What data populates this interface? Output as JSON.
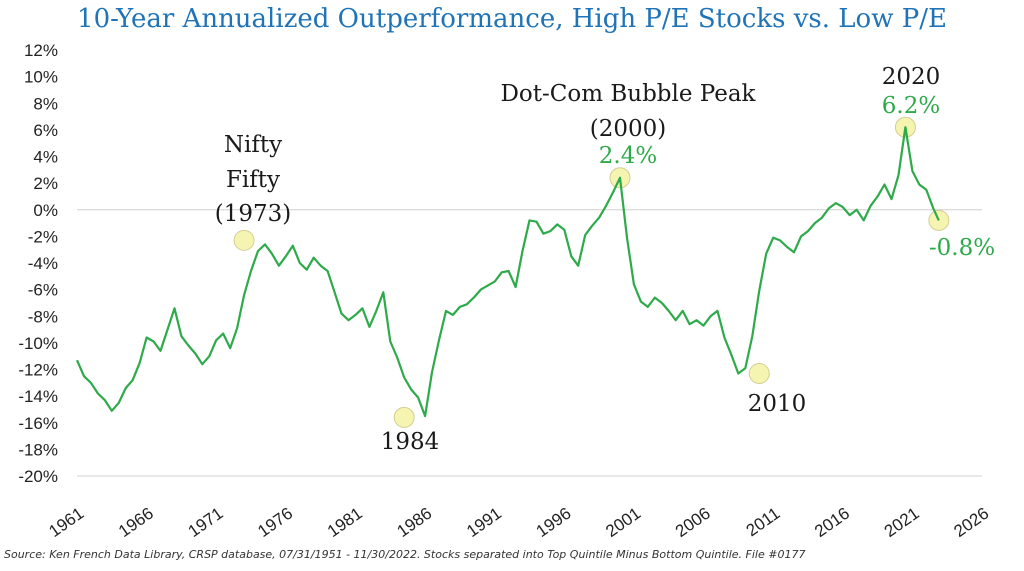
{
  "title": "10-Year Annualized Outperformance, High P/E Stocks vs. Low P/E",
  "source": "Source: Ken French Data Library, CRSP database, 07/31/1951 - 11/30/2022. Stocks separated into Top Quintile Minus Bottom Quintile. File #0177",
  "colors": {
    "title": "#1f73b7",
    "line": "#2eaa4a",
    "marker_fill": "#f5f3a8",
    "marker_stroke": "#cfc98a",
    "annotation_dark": "#1a1a1a",
    "annotation_green": "#2eaa4a"
  },
  "chart_data": {
    "type": "line",
    "title": "10-Year Annualized Outperformance, High P/E Stocks vs. Low P/E",
    "xlim": [
      1961,
      2026
    ],
    "ylim": [
      -20,
      12
    ],
    "x_ticks": [
      "1961",
      "1966",
      "1971",
      "1976",
      "1981",
      "1986",
      "1991",
      "1996",
      "2001",
      "2006",
      "2011",
      "2016",
      "2021",
      "2026"
    ],
    "y_ticks": [
      "12%",
      "10%",
      "8%",
      "6%",
      "4%",
      "2%",
      "0%",
      "-2%",
      "-4%",
      "-6%",
      "-8%",
      "-10%",
      "-12%",
      "-14%",
      "-16%",
      "-18%",
      "-20%"
    ],
    "grid": false,
    "zero_line": true,
    "series": [
      {
        "x": [
          1961.0,
          1961.5,
          1962.0,
          1962.5,
          1963.0,
          1963.5,
          1964.0,
          1964.5,
          1965.0,
          1965.5,
          1966.0,
          1966.5,
          1967.0,
          1967.5,
          1968.0,
          1968.5,
          1969.0,
          1969.5,
          1970.0,
          1970.5,
          1971.0,
          1971.5,
          1972.0,
          1972.5,
          1973.0,
          1973.5,
          1974.0,
          1974.5,
          1975.0,
          1975.5,
          1976.0,
          1976.5,
          1977.0,
          1977.5,
          1978.0,
          1978.5,
          1979.0,
          1979.5,
          1980.0,
          1980.5,
          1981.0,
          1981.5,
          1982.0,
          1982.5,
          1983.0,
          1983.5,
          1984.0,
          1984.5,
          1985.0,
          1985.5,
          1986.0,
          1986.5,
          1987.0,
          1987.5,
          1988.0,
          1988.5,
          1989.0,
          1989.5,
          1990.0,
          1990.5,
          1991.0,
          1991.5,
          1992.0,
          1992.5,
          1993.0,
          1993.5,
          1994.0,
          1994.5,
          1995.0,
          1995.5,
          1996.0,
          1996.5,
          1997.0,
          1997.5,
          1998.0,
          1998.5,
          1999.0,
          1999.5,
          2000.0,
          2000.5,
          2001.0,
          2001.5,
          2002.0,
          2002.5,
          2003.0,
          2003.5,
          2004.0,
          2004.5,
          2005.0,
          2005.5,
          2006.0,
          2006.5,
          2007.0,
          2007.5,
          2008.0,
          2008.5,
          2009.0,
          2009.5,
          2010.0,
          2010.5,
          2011.0,
          2011.5,
          2012.0,
          2012.5,
          2013.0,
          2013.5,
          2014.0,
          2014.5,
          2015.0,
          2015.5,
          2016.0,
          2016.5,
          2017.0,
          2017.5,
          2018.0,
          2018.5,
          2019.0,
          2019.5,
          2020.0,
          2020.5,
          2021.0,
          2021.5,
          2022.0,
          2022.5,
          2022.9
        ],
        "values": [
          -11.3,
          -12.5,
          -13.0,
          -13.8,
          -14.3,
          -15.1,
          -14.5,
          -13.4,
          -12.8,
          -11.5,
          -9.6,
          -9.9,
          -10.6,
          -9.0,
          -7.4,
          -9.5,
          -10.2,
          -10.8,
          -11.6,
          -11.0,
          -9.8,
          -9.3,
          -10.4,
          -8.9,
          -6.4,
          -4.6,
          -3.1,
          -2.6,
          -3.3,
          -4.2,
          -3.5,
          -2.7,
          -4.0,
          -4.5,
          -3.6,
          -4.2,
          -4.6,
          -6.2,
          -7.8,
          -8.3,
          -7.9,
          -7.4,
          -8.8,
          -7.6,
          -6.2,
          -9.9,
          -11.1,
          -12.6,
          -13.5,
          -14.1,
          -15.5,
          -12.2,
          -9.8,
          -7.6,
          -7.9,
          -7.3,
          -7.1,
          -6.6,
          -6.0,
          -5.7,
          -5.4,
          -4.7,
          -4.6,
          -5.8,
          -3.1,
          -0.8,
          -0.9,
          -1.8,
          -1.6,
          -1.1,
          -1.5,
          -3.5,
          -4.2,
          -1.9,
          -1.2,
          -0.6,
          0.3,
          1.3,
          2.4,
          -2.1,
          -5.6,
          -6.9,
          -7.3,
          -6.6,
          -7.0,
          -7.6,
          -8.3,
          -7.6,
          -8.6,
          -8.3,
          -8.7,
          -8.0,
          -7.6,
          -9.6,
          -10.9,
          -12.3,
          -11.9,
          -9.5,
          -6.1,
          -3.3,
          -2.1,
          -2.3,
          -2.8,
          -3.2,
          -2.0,
          -1.6,
          -1.0,
          -0.6,
          0.1,
          0.5,
          0.2,
          -0.4,
          0.0,
          -0.8,
          0.3,
          1.0,
          1.9,
          0.8,
          2.6,
          6.2,
          2.9,
          1.9,
          1.5,
          0.1,
          -0.8
        ]
      }
    ],
    "annotations": [
      {
        "id": "nifty-fifty",
        "x": 1973.0,
        "y": -2.3,
        "lines": [
          "Nifty",
          "Fifty",
          "(1973)"
        ]
      },
      {
        "id": "1984",
        "x": 1984.5,
        "y": -15.6,
        "lines": [
          "1984"
        ]
      },
      {
        "id": "dot-com",
        "x": 2000.0,
        "y": 2.4,
        "lines": [
          "Dot-Com Bubble Peak",
          "(2000)"
        ],
        "value": "2.4%"
      },
      {
        "id": "2010",
        "x": 2010.0,
        "y": -12.3,
        "lines": [
          "2010"
        ]
      },
      {
        "id": "2020",
        "x": 2020.5,
        "y": 6.2,
        "lines": [
          "2020"
        ],
        "value": "6.2%"
      },
      {
        "id": "latest",
        "x": 2022.9,
        "y": -0.8,
        "lines": [],
        "value": "-0.8%"
      }
    ]
  }
}
